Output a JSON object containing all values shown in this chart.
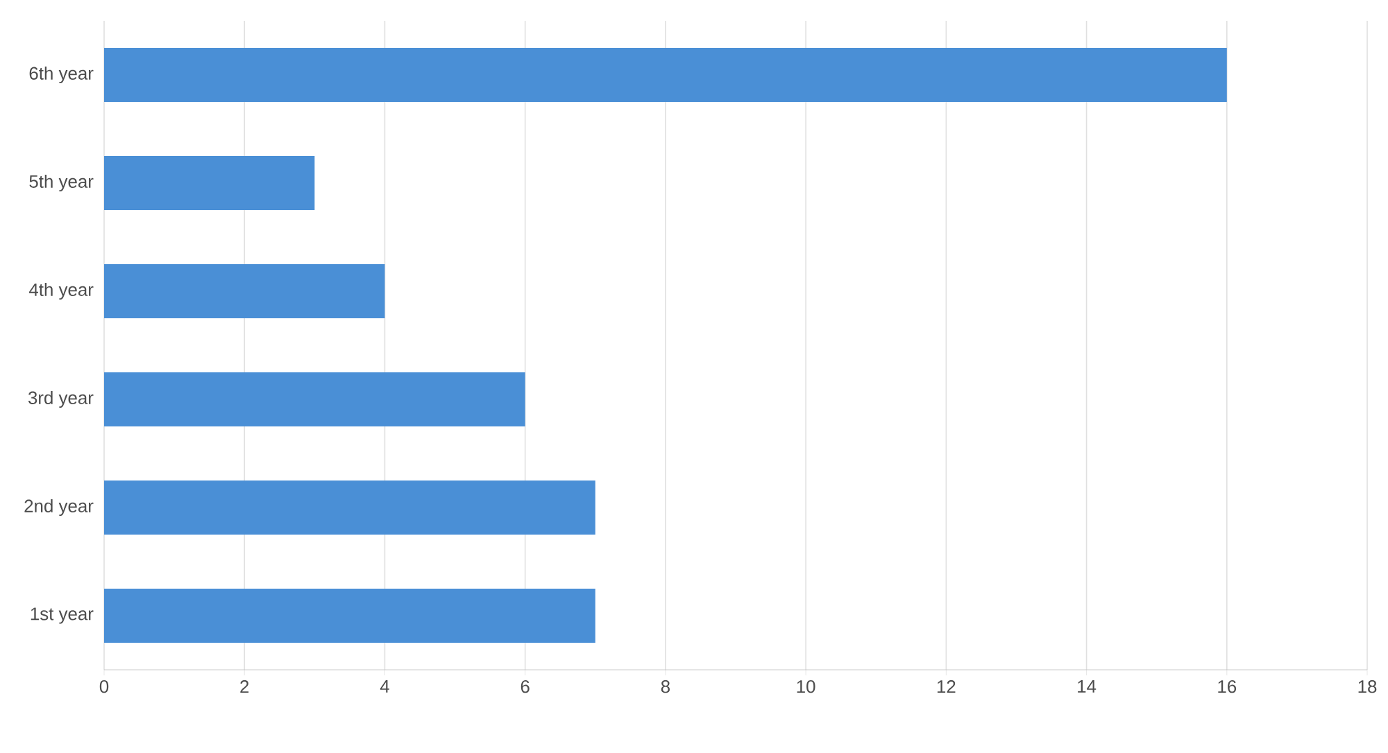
{
  "chart_data": {
    "type": "bar",
    "orientation": "horizontal",
    "categories": [
      "6th year",
      "5th year",
      "4th year",
      "3rd year",
      "2nd year",
      "1st year"
    ],
    "values": [
      16,
      3,
      4,
      6,
      7,
      7
    ],
    "color": "#4a8fd6",
    "xlim": [
      0,
      18
    ],
    "xticks": [
      0,
      2,
      4,
      6,
      8,
      10,
      12,
      14,
      16,
      18
    ],
    "grid": "x"
  }
}
